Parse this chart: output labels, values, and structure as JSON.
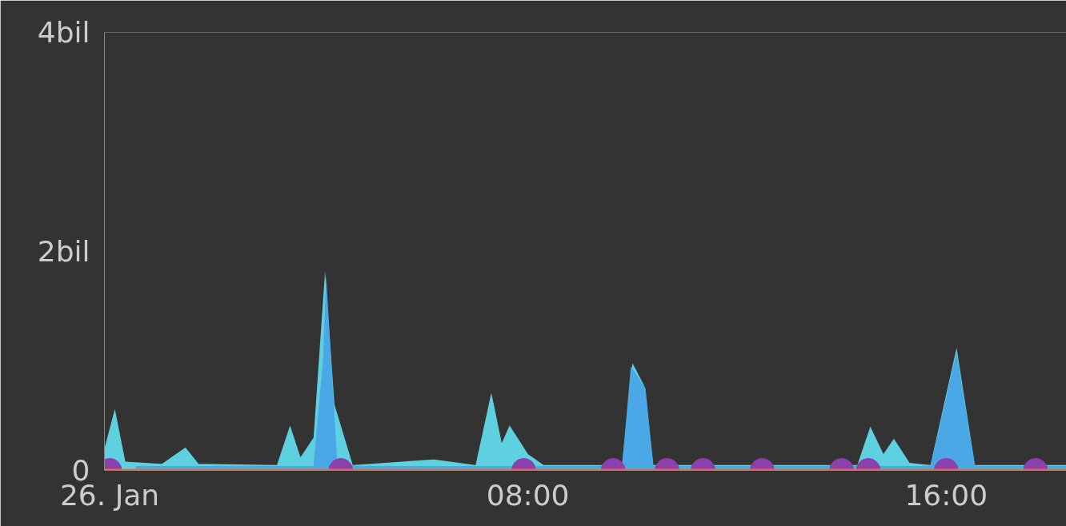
{
  "chart_data": {
    "type": "area",
    "xlim": [
      -0.1,
      18.3
    ],
    "ylim": [
      0,
      4
    ],
    "xticks": [
      {
        "value": 0,
        "label": "26. Jan"
      },
      {
        "value": 8,
        "label": "08:00"
      },
      {
        "value": 16,
        "label": "16:00"
      }
    ],
    "yticks": [
      0,
      {
        "value": 2,
        "label": "2bil"
      },
      {
        "value": 4,
        "label": "4bil"
      }
    ],
    "grid": false,
    "series": [
      {
        "color": "#5fd0df",
        "x": [
          -0.1,
          0.1,
          0.3,
          1.0,
          1.45,
          1.7,
          3.2,
          3.45,
          3.65,
          3.9,
          4.12,
          4.3,
          4.65,
          6.2,
          7.0,
          7.3,
          7.5,
          7.65,
          8.0,
          8.3,
          9.8,
          10.0,
          10.22,
          10.4,
          14.3,
          14.55,
          14.8,
          15.0,
          15.3,
          15.7,
          16.2,
          16.55,
          18.3
        ],
        "values": [
          0.2,
          0.56,
          0.08,
          0.06,
          0.21,
          0.06,
          0.05,
          0.41,
          0.12,
          0.3,
          1.82,
          0.6,
          0.05,
          0.1,
          0.05,
          0.71,
          0.25,
          0.41,
          0.15,
          0.05,
          0.05,
          0.98,
          0.78,
          0.05,
          0.05,
          0.4,
          0.15,
          0.29,
          0.07,
          0.05,
          1.12,
          0.05,
          0.05
        ]
      },
      {
        "color": "#4aa8e6",
        "x": [
          0.5,
          3.9,
          4.08,
          4.14,
          4.35,
          4.7,
          9.8,
          9.97,
          10.25,
          10.4,
          15.7,
          16.2,
          16.55,
          18.3
        ],
        "values": [
          0.04,
          0.04,
          1.0,
          1.78,
          0.1,
          0.04,
          0.04,
          0.95,
          0.75,
          0.04,
          0.04,
          1.08,
          0.04,
          0.04
        ]
      },
      {
        "type": "scatter",
        "color": "#8e3fae",
        "marker": "circle",
        "x": [
          0,
          4.42,
          7.92,
          9.63,
          10.66,
          11.35,
          12.48,
          14.0,
          14.51,
          16.0,
          17.71
        ],
        "values": [
          0,
          0,
          0,
          0,
          0,
          0,
          0,
          0,
          0,
          0,
          0
        ]
      },
      {
        "type": "line",
        "color": "#e8743b",
        "x": [
          -0.1,
          18.3
        ],
        "values": [
          0,
          0
        ]
      }
    ]
  }
}
